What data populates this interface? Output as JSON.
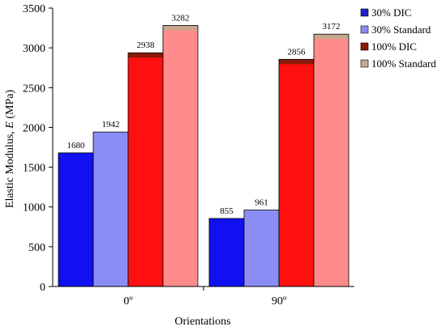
{
  "chart_data": {
    "type": "bar",
    "title": "",
    "xlabel": "Orientations",
    "ylabel_prefix": "Elastic Modulus, ",
    "ylabel_var": "E",
    "ylabel_suffix": " (MPa)",
    "categories": [
      "0º",
      "90º"
    ],
    "ylim": [
      0,
      3500
    ],
    "yticks": [
      0,
      500,
      1000,
      1500,
      2000,
      2500,
      3000,
      3500
    ],
    "grid": false,
    "legend_position": "top-right",
    "series": [
      {
        "name": "30% DIC",
        "values": [
          1680,
          855
        ],
        "color": "#1010f0",
        "legend_color": "#2020c8"
      },
      {
        "name": "30% Standard",
        "values": [
          1942,
          961
        ],
        "color": "#8c8cf5",
        "legend_color": "#8c8cf5"
      },
      {
        "name": "100% DIC",
        "values": [
          2938,
          2856
        ],
        "color": "#ff1010",
        "legend_color": "#8b1a0a",
        "cap_color": "#8b1a0a"
      },
      {
        "name": "100% Standard",
        "values": [
          3282,
          3172
        ],
        "color": "#ff8c8c",
        "legend_color": "#c8a890",
        "cap_color": "#c8a890"
      }
    ],
    "data_labels": [
      [
        "1680",
        "855"
      ],
      [
        "1942",
        "961"
      ],
      [
        "2938",
        "2856"
      ],
      [
        "3282",
        "3172"
      ]
    ]
  }
}
